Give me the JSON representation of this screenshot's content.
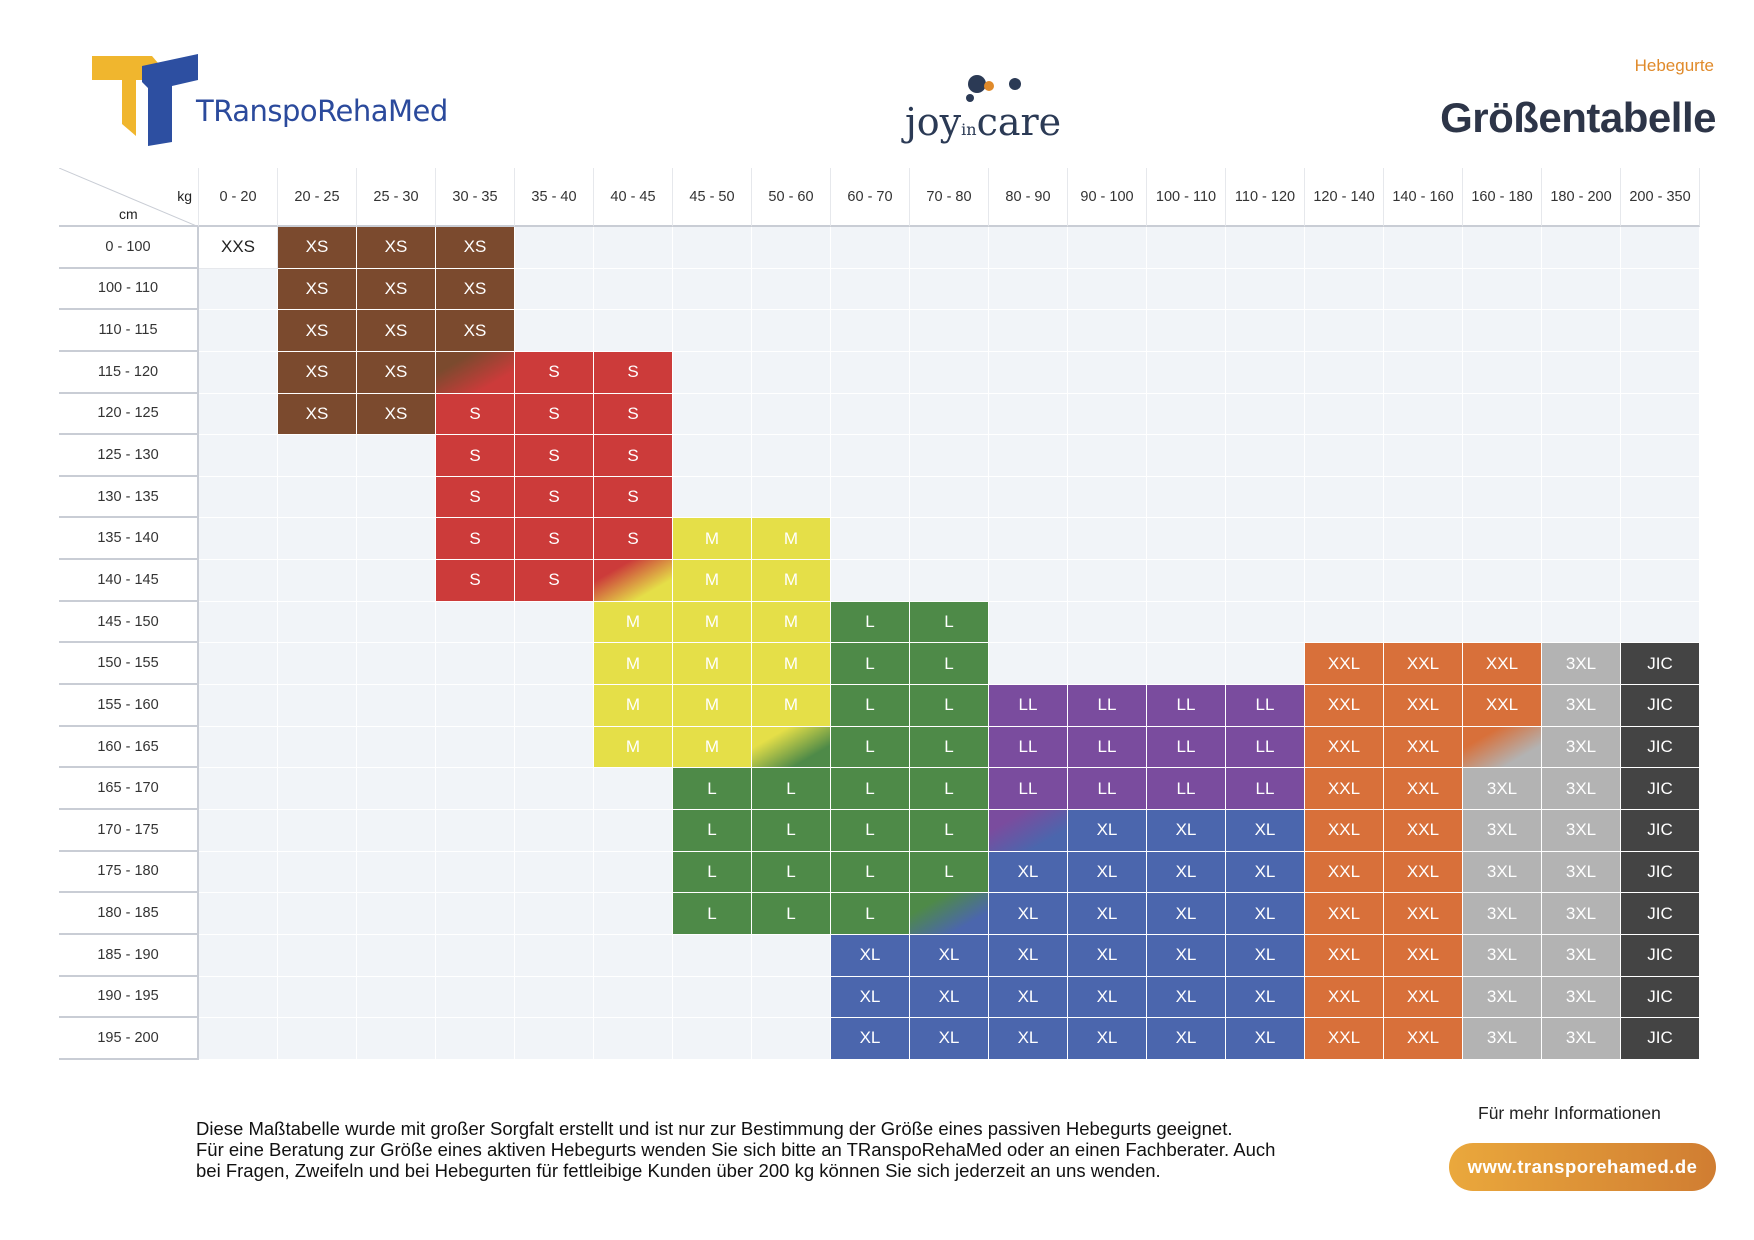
{
  "header": {
    "brand_left": "TRanspoRehaMed",
    "brand_center_joy": "joy",
    "brand_center_in": "in",
    "brand_center_care": "care",
    "category": "Hebegurte",
    "title": "Größentabelle"
  },
  "table": {
    "corner_kg": "kg",
    "corner_cm": "cm",
    "weight_columns": [
      "0 - 20",
      "20 - 25",
      "25 - 30",
      "30 - 35",
      "35 - 40",
      "40 - 45",
      "45 - 50",
      "50 - 60",
      "60 - 70",
      "70 - 80",
      "80 - 90",
      "90 - 100",
      "100 - 110",
      "110 - 120",
      "120 - 140",
      "140 - 160",
      "160 - 180",
      "180 - 200",
      "200 - 350"
    ],
    "height_rows": [
      "0 - 100",
      "100 - 110",
      "110 - 115",
      "115 - 120",
      "120 - 125",
      "125 - 130",
      "130 - 135",
      "135 - 140",
      "140 - 145",
      "145 - 150",
      "150 - 155",
      "155 - 160",
      "160 - 165",
      "165 - 170",
      "170 - 175",
      "175 - 180",
      "180 - 185",
      "185 - 190",
      "190 - 195",
      "195 - 200"
    ],
    "size_colors": {
      "XXS": "#ffffff",
      "XS": "#7b4a2e",
      "S": "#cc3b3a",
      "M": "#e5df48",
      "L": "#4e8a48",
      "LL": "#7a4c9e",
      "XL": "#4b66ad",
      "XXL": "#d8703a",
      "3XL": "#b3b3b3",
      "JIC": "#444444"
    },
    "grid": [
      [
        "XXS",
        "XS",
        "XS",
        "XS",
        "",
        "",
        "",
        "",
        "",
        "",
        "",
        "",
        "",
        "",
        "",
        "",
        "",
        "",
        ""
      ],
      [
        "",
        "XS",
        "XS",
        "XS",
        "",
        "",
        "",
        "",
        "",
        "",
        "",
        "",
        "",
        "",
        "",
        "",
        "",
        "",
        ""
      ],
      [
        "",
        "XS",
        "XS",
        "XS",
        "",
        "",
        "",
        "",
        "",
        "",
        "",
        "",
        "",
        "",
        "",
        "",
        "",
        "",
        ""
      ],
      [
        "",
        "XS",
        "XS",
        "XS/S",
        "S",
        "S",
        "",
        "",
        "",
        "",
        "",
        "",
        "",
        "",
        "",
        "",
        "",
        "",
        ""
      ],
      [
        "",
        "XS",
        "XS",
        "S",
        "S",
        "S",
        "",
        "",
        "",
        "",
        "",
        "",
        "",
        "",
        "",
        "",
        "",
        "",
        ""
      ],
      [
        "",
        "",
        "",
        "S",
        "S",
        "S",
        "",
        "",
        "",
        "",
        "",
        "",
        "",
        "",
        "",
        "",
        "",
        "",
        ""
      ],
      [
        "",
        "",
        "",
        "S",
        "S",
        "S",
        "",
        "",
        "",
        "",
        "",
        "",
        "",
        "",
        "",
        "",
        "",
        "",
        ""
      ],
      [
        "",
        "",
        "",
        "S",
        "S",
        "S",
        "M",
        "M",
        "",
        "",
        "",
        "",
        "",
        "",
        "",
        "",
        "",
        "",
        ""
      ],
      [
        "",
        "",
        "",
        "S",
        "S",
        "S/M",
        "M",
        "M",
        "",
        "",
        "",
        "",
        "",
        "",
        "",
        "",
        "",
        "",
        ""
      ],
      [
        "",
        "",
        "",
        "",
        "",
        "M",
        "M",
        "M",
        "L",
        "L",
        "",
        "",
        "",
        "",
        "",
        "",
        "",
        "",
        ""
      ],
      [
        "",
        "",
        "",
        "",
        "",
        "M",
        "M",
        "M",
        "L",
        "L",
        "",
        "",
        "",
        "",
        "XXL",
        "XXL",
        "XXL",
        "3XL",
        "JIC"
      ],
      [
        "",
        "",
        "",
        "",
        "",
        "M",
        "M",
        "M",
        "L",
        "L",
        "LL",
        "LL",
        "LL",
        "LL",
        "XXL",
        "XXL",
        "XXL",
        "3XL",
        "JIC"
      ],
      [
        "",
        "",
        "",
        "",
        "",
        "M",
        "M",
        "M/L",
        "L",
        "L",
        "LL",
        "LL",
        "LL",
        "LL",
        "XXL",
        "XXL",
        "XXL/3XL",
        "3XL",
        "JIC"
      ],
      [
        "",
        "",
        "",
        "",
        "",
        "",
        "L",
        "L",
        "L",
        "L",
        "LL",
        "LL",
        "LL",
        "LL",
        "XXL",
        "XXL",
        "3XL",
        "3XL",
        "JIC"
      ],
      [
        "",
        "",
        "",
        "",
        "",
        "",
        "L",
        "L",
        "L",
        "L",
        "LL/XL",
        "XL",
        "XL",
        "XL",
        "XXL",
        "XXL",
        "3XL",
        "3XL",
        "JIC"
      ],
      [
        "",
        "",
        "",
        "",
        "",
        "",
        "L",
        "L",
        "L",
        "L",
        "XL",
        "XL",
        "XL",
        "XL",
        "XXL",
        "XXL",
        "3XL",
        "3XL",
        "JIC"
      ],
      [
        "",
        "",
        "",
        "",
        "",
        "",
        "L",
        "L",
        "L",
        "L/XL",
        "XL",
        "XL",
        "XL",
        "XL",
        "XXL",
        "XXL",
        "3XL",
        "3XL",
        "JIC"
      ],
      [
        "",
        "",
        "",
        "",
        "",
        "",
        "",
        "",
        "XL",
        "XL",
        "XL",
        "XL",
        "XL",
        "XL",
        "XXL",
        "XXL",
        "3XL",
        "3XL",
        "JIC"
      ],
      [
        "",
        "",
        "",
        "",
        "",
        "",
        "",
        "",
        "XL",
        "XL",
        "XL",
        "XL",
        "XL",
        "XL",
        "XXL",
        "XXL",
        "3XL",
        "3XL",
        "JIC"
      ],
      [
        "",
        "",
        "",
        "",
        "",
        "",
        "",
        "",
        "XL",
        "XL",
        "XL",
        "XL",
        "XL",
        "XL",
        "XXL",
        "XXL",
        "3XL",
        "3XL",
        "JIC"
      ]
    ]
  },
  "footer": {
    "note_line1": "Diese Maßtabelle wurde mit großer Sorgfalt erstellt und ist nur zur Bestimmung der Größe eines passiven Hebegurts geeignet.",
    "note_line2": "Für eine Beratung zur Größe eines aktiven Hebegurts wenden Sie sich bitte an TRanspoRehaMed oder an einen Fachberater. Auch",
    "note_line3": "bei Fragen, Zweifeln und bei Hebegurten für fettleibige Kunden über 200 kg können Sie sich jederzeit an uns wenden.",
    "more_info": "Für mehr Informationen",
    "website": "www.transporehamed.de"
  }
}
